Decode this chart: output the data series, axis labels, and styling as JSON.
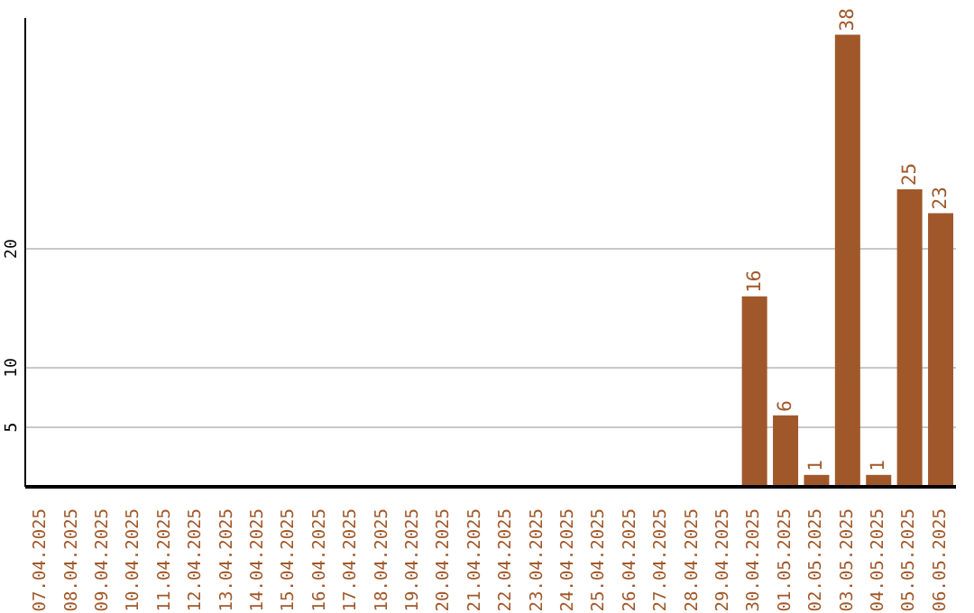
{
  "chart_data": {
    "type": "bar",
    "categories": [
      "07.04.2025",
      "08.04.2025",
      "09.04.2025",
      "10.04.2025",
      "11.04.2025",
      "12.04.2025",
      "13.04.2025",
      "14.04.2025",
      "15.04.2025",
      "16.04.2025",
      "17.04.2025",
      "18.04.2025",
      "19.04.2025",
      "20.04.2025",
      "21.04.2025",
      "22.04.2025",
      "23.04.2025",
      "24.04.2025",
      "25.04.2025",
      "26.04.2025",
      "27.04.2025",
      "28.04.2025",
      "29.04.2025",
      "30.04.2025",
      "01.05.2025",
      "02.05.2025",
      "03.05.2025",
      "04.05.2025",
      "05.05.2025",
      "06.05.2025"
    ],
    "values": [
      0,
      0,
      0,
      0,
      0,
      0,
      0,
      0,
      0,
      0,
      0,
      0,
      0,
      0,
      0,
      0,
      0,
      0,
      0,
      0,
      0,
      0,
      0,
      16,
      6,
      1,
      38,
      1,
      25,
      23
    ],
    "value_labels": [
      null,
      null,
      null,
      null,
      null,
      null,
      null,
      null,
      null,
      null,
      null,
      null,
      null,
      null,
      null,
      null,
      null,
      null,
      null,
      null,
      null,
      null,
      null,
      "16",
      "6",
      "1",
      "38",
      "1",
      "25",
      "23"
    ],
    "color": "#a0582a",
    "ylim": [
      0,
      39.4
    ],
    "yticks": [
      5,
      10,
      20
    ],
    "grid": "y"
  }
}
